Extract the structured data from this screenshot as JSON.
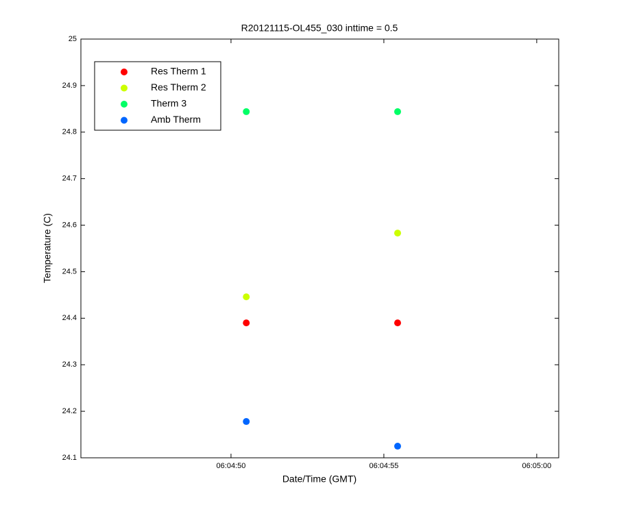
{
  "chart_data": {
    "type": "scatter",
    "title": "R20121115-OL455_030 inttime = 0.5",
    "x_label": "Date/Time (GMT)",
    "y_label": "Temperature (C)",
    "x": [
      21890.5,
      21895.45
    ],
    "series": [
      {
        "name": "Res Therm 1",
        "color": "#ff0000",
        "values": [
          24.39,
          24.39
        ]
      },
      {
        "name": "Res Therm 2",
        "color": "#ccff00",
        "values": [
          24.446,
          24.583
        ]
      },
      {
        "name": "Therm 3",
        "color": "#00ff66",
        "values": [
          24.844,
          24.844
        ]
      },
      {
        "name": "Amb Therm",
        "color": "#0066ff",
        "values": [
          24.178,
          24.125
        ]
      }
    ],
    "xlim": [
      21885.09,
      21900.72
    ],
    "xticks": [
      {
        "value": 21890,
        "label": "06:04:50"
      },
      {
        "value": 21895,
        "label": "06:04:55"
      },
      {
        "value": 21900,
        "label": "06:05:00"
      }
    ],
    "ylim": [
      24.1,
      25
    ],
    "yticks": [
      24.1,
      24.2,
      24.3,
      24.4,
      24.5,
      24.6,
      24.7,
      24.8,
      24.9,
      25
    ],
    "grid": false,
    "legend": "upper left"
  }
}
